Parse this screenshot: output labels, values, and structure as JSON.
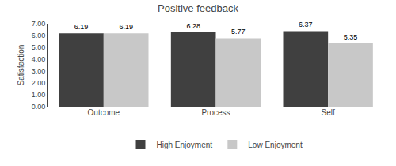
{
  "chart_data": {
    "type": "bar",
    "title": "Positive feedback",
    "ylabel": "Satisfaction",
    "categories": [
      "Outcome",
      "Process",
      "Self"
    ],
    "series": [
      {
        "name": "High Enjoyment",
        "color": "#404040",
        "values": [
          6.19,
          6.28,
          6.37
        ]
      },
      {
        "name": "Low Enjoyment",
        "color": "#c8c8c8",
        "values": [
          6.19,
          5.77,
          5.35
        ]
      }
    ],
    "ylim": [
      0,
      7.0
    ],
    "yticks": [
      {
        "value": 0.0,
        "label": "0.00"
      },
      {
        "value": 1.0,
        "label": "1.00"
      },
      {
        "value": 2.0,
        "label": "2.00"
      },
      {
        "value": 3.0,
        "label": "3.00"
      },
      {
        "value": 4.0,
        "label": "4.00"
      },
      {
        "value": 5.0,
        "label": "5.00"
      },
      {
        "value": 6.0,
        "label": "6.00"
      },
      {
        "value": 7.0,
        "label": "7.00"
      }
    ],
    "data_labels": true,
    "grid": false,
    "legend": "bottom"
  }
}
